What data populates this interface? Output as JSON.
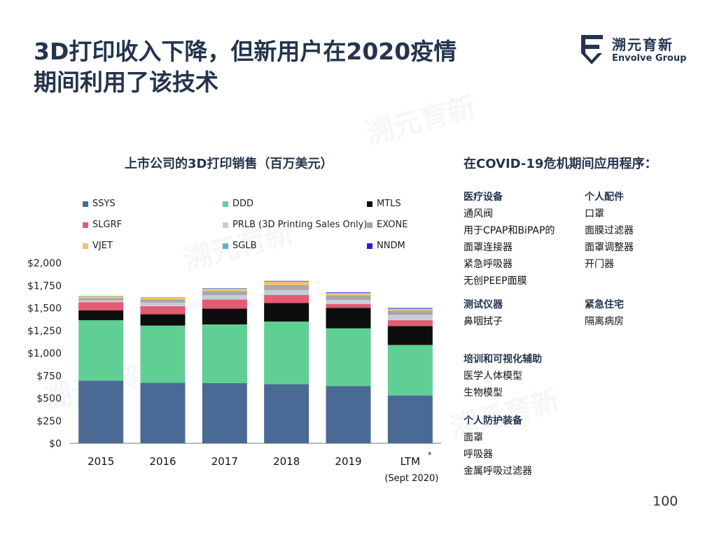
{
  "slide": {
    "title_line1": "3D打印收入下降，但新用户在2020疫情",
    "title_line2": "期间利用了该技术",
    "page_number": "100"
  },
  "logo": {
    "name_cn": "溯元育新",
    "name_en": "Envolve Group",
    "color": "#24344f"
  },
  "chart_data": {
    "type": "bar",
    "stacked": true,
    "title": "上市公司的3D打印销售（百万美元）",
    "categories": [
      "2015",
      "2016",
      "2017",
      "2018",
      "2019",
      "LTM"
    ],
    "category_sublabels": [
      "",
      "",
      "",
      "",
      "",
      "(Sept 2020)"
    ],
    "category_footnote_mark": [
      "",
      "",
      "",
      "",
      "",
      "*"
    ],
    "xlabel": "",
    "ylabel": "",
    "ylim": [
      0,
      2000
    ],
    "yticks": [
      0,
      250,
      500,
      750,
      1000,
      1250,
      1500,
      1750,
      2000
    ],
    "ytick_labels": [
      "$0",
      "$250",
      "$500",
      "$750",
      "$1,000",
      "$1,250",
      "$1,500",
      "$1,750",
      "$2,000"
    ],
    "grid": false,
    "series": [
      {
        "name": "SSYS",
        "color": "#4a6a95",
        "values": [
          695,
          670,
          668,
          655,
          635,
          530
        ]
      },
      {
        "name": "DDD",
        "color": "#5fcf93",
        "values": [
          670,
          635,
          650,
          695,
          640,
          560
        ]
      },
      {
        "name": "MTLS",
        "color": "#0d0d0d",
        "values": [
          110,
          125,
          175,
          205,
          225,
          210
        ]
      },
      {
        "name": "SLGRF",
        "color": "#e55a74",
        "values": [
          90,
          90,
          100,
          90,
          45,
          65
        ]
      },
      {
        "name": "PRLB (3D Printing Sales Only)",
        "color": "#c5ced8",
        "values": [
          20,
          40,
          50,
          55,
          45,
          60
        ]
      },
      {
        "name": "EXONE",
        "color": "#a7a7a7",
        "values": [
          25,
          35,
          45,
          55,
          50,
          45
        ]
      },
      {
        "name": "VJET",
        "color": "#f0c36c",
        "values": [
          20,
          20,
          25,
          35,
          25,
          20
        ]
      },
      {
        "name": "SGLB",
        "color": "#5aaee0",
        "values": [
          5,
          5,
          5,
          6,
          3,
          3
        ]
      },
      {
        "name": "NNDM",
        "color": "#2a1fd0",
        "values": [
          0,
          0,
          2,
          4,
          6,
          7
        ]
      }
    ]
  },
  "covid": {
    "title": "在COVID-19危机期间应用程序：",
    "sections": [
      {
        "heading": "医疗设备",
        "items": [
          "通风阀",
          "用于CPAP和BiPAP的",
          "面罩连接器",
          "紧急呼吸器",
          "无创PEEP面膜"
        ]
      },
      {
        "heading": "个人配件",
        "items": [
          "口罩",
          "面膜过滤器",
          "面罩调整器",
          "开门器"
        ]
      },
      {
        "heading": "测试仪器",
        "items": [
          "鼻咽拭子"
        ]
      },
      {
        "heading": "紧急住宅",
        "items": [
          "隔离病房"
        ]
      },
      {
        "heading": "培训和可视化辅助",
        "items": [
          "医学人体模型",
          "生物模型"
        ]
      },
      {
        "heading": "个人防护装备",
        "items": [
          "面罩",
          "呼吸器",
          "金属呼吸过滤器"
        ]
      }
    ]
  }
}
